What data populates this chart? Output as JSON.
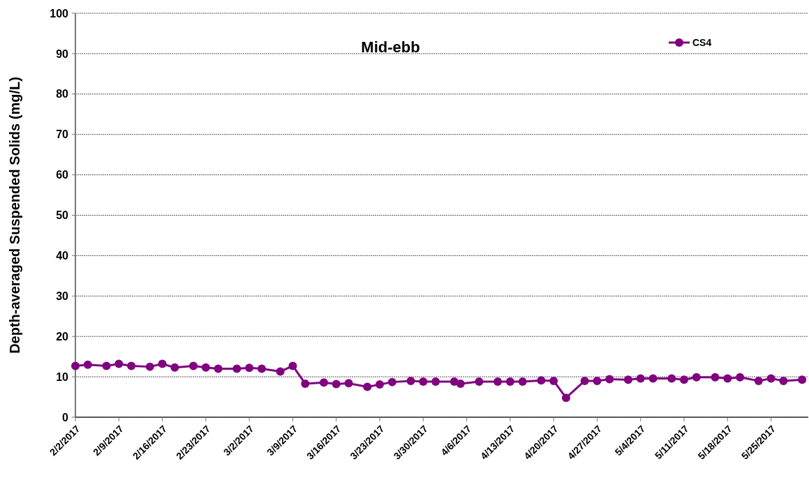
{
  "chart_data": {
    "type": "line",
    "title": "Mid-ebb",
    "ylabel": "Depth-averaged Suspended Solids (mg/L)",
    "x": [
      "2017-02-02",
      "2017-02-04",
      "2017-02-07",
      "2017-02-09",
      "2017-02-11",
      "2017-02-14",
      "2017-02-16",
      "2017-02-18",
      "2017-02-21",
      "2017-02-23",
      "2017-02-25",
      "2017-02-28",
      "2017-03-02",
      "2017-03-04",
      "2017-03-07",
      "2017-03-09",
      "2017-03-11",
      "2017-03-14",
      "2017-03-16",
      "2017-03-18",
      "2017-03-21",
      "2017-03-23",
      "2017-03-25",
      "2017-03-28",
      "2017-03-30",
      "2017-04-01",
      "2017-04-04",
      "2017-04-05",
      "2017-04-08",
      "2017-04-11",
      "2017-04-13",
      "2017-04-15",
      "2017-04-18",
      "2017-04-20",
      "2017-04-22",
      "2017-04-25",
      "2017-04-27",
      "2017-04-29",
      "2017-05-02",
      "2017-05-04",
      "2017-05-06",
      "2017-05-09",
      "2017-05-11",
      "2017-05-13",
      "2017-05-16",
      "2017-05-18",
      "2017-05-20",
      "2017-05-23",
      "2017-05-25",
      "2017-05-27",
      "2017-05-30"
    ],
    "series": [
      {
        "name": "CS4",
        "color": "#800080",
        "values": [
          12.7,
          13.0,
          12.7,
          13.2,
          12.7,
          12.5,
          13.2,
          12.3,
          12.7,
          12.3,
          12.0,
          12.0,
          12.2,
          12.0,
          11.3,
          12.7,
          8.3,
          8.6,
          8.2,
          8.4,
          7.5,
          8.1,
          8.7,
          9.0,
          8.8,
          8.8,
          8.8,
          8.3,
          8.8,
          8.8,
          8.8,
          8.8,
          9.1,
          9.0,
          4.8,
          9.0,
          9.0,
          9.4,
          9.3,
          9.6,
          9.6,
          9.6,
          9.3,
          9.9,
          9.9,
          9.6,
          9.9,
          9.0,
          9.6,
          9.0,
          9.3
        ]
      }
    ],
    "xlim": [
      "2017-02-02",
      "2017-05-31"
    ],
    "xticks": [
      {
        "value": "2017-02-02",
        "label": "2/2/2017"
      },
      {
        "value": "2017-02-09",
        "label": "2/9/2017"
      },
      {
        "value": "2017-02-16",
        "label": "2/16/2017"
      },
      {
        "value": "2017-02-23",
        "label": "2/23/2017"
      },
      {
        "value": "2017-03-02",
        "label": "3/2/2017"
      },
      {
        "value": "2017-03-09",
        "label": "3/9/2017"
      },
      {
        "value": "2017-03-16",
        "label": "3/16/2017"
      },
      {
        "value": "2017-03-23",
        "label": "3/23/2017"
      },
      {
        "value": "2017-03-30",
        "label": "3/30/2017"
      },
      {
        "value": "2017-04-06",
        "label": "4/6/2017"
      },
      {
        "value": "2017-04-13",
        "label": "4/13/2017"
      },
      {
        "value": "2017-04-20",
        "label": "4/20/2017"
      },
      {
        "value": "2017-04-27",
        "label": "4/27/2017"
      },
      {
        "value": "2017-05-04",
        "label": "5/4/2017"
      },
      {
        "value": "2017-05-11",
        "label": "5/11/2017"
      },
      {
        "value": "2017-05-18",
        "label": "5/18/2017"
      },
      {
        "value": "2017-05-25",
        "label": "5/25/2017"
      }
    ],
    "ylim": [
      0,
      100
    ],
    "yticks": [
      0,
      10,
      20,
      30,
      40,
      50,
      60,
      70,
      80,
      90,
      100
    ],
    "grid": "y",
    "legend": "top right",
    "marker": "circle",
    "line_style": "solid"
  }
}
